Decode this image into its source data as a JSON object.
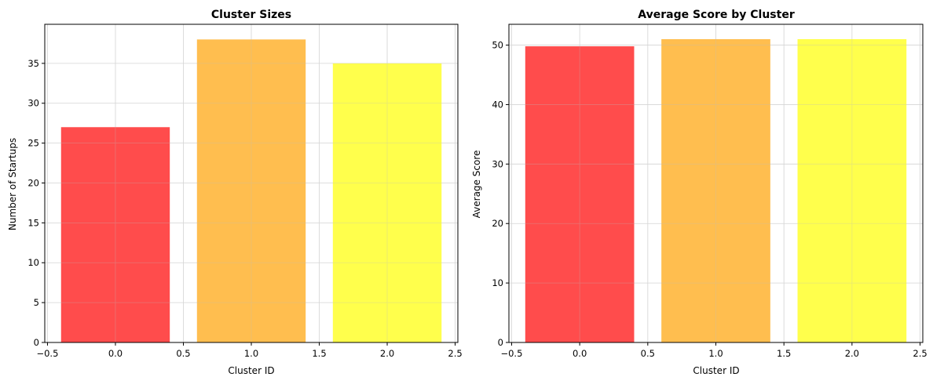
{
  "chart_data": [
    {
      "type": "bar",
      "title": "Cluster Sizes",
      "xlabel": "Cluster ID",
      "ylabel": "Number of Startups",
      "x": [
        0,
        1,
        2
      ],
      "values": [
        27,
        38,
        35
      ],
      "bar_width": 0.8,
      "colors": [
        "#ff4c4c",
        "#ffbe4f",
        "#ffff4c"
      ],
      "xlim": [
        -0.52,
        2.52
      ],
      "ylim": [
        0,
        39.9
      ],
      "xticks": [
        -0.5,
        0.0,
        0.5,
        1.0,
        1.5,
        2.0,
        2.5
      ],
      "xtick_labels": [
        "−0.5",
        "0.0",
        "0.5",
        "1.0",
        "1.5",
        "2.0",
        "2.5"
      ],
      "yticks": [
        0,
        5,
        10,
        15,
        20,
        25,
        30,
        35
      ],
      "ytick_labels": [
        "0",
        "5",
        "10",
        "15",
        "20",
        "25",
        "30",
        "35"
      ],
      "grid": true,
      "legend": "none"
    },
    {
      "type": "bar",
      "title": "Average Score by Cluster",
      "xlabel": "Cluster ID",
      "ylabel": "Average Score",
      "x": [
        0,
        1,
        2
      ],
      "values": [
        49.8,
        51.0,
        51.0
      ],
      "bar_width": 0.8,
      "colors": [
        "#ff4c4c",
        "#ffbe4f",
        "#ffff4c"
      ],
      "xlim": [
        -0.52,
        2.52
      ],
      "ylim": [
        0,
        53.5
      ],
      "xticks": [
        -0.5,
        0.0,
        0.5,
        1.0,
        1.5,
        2.0,
        2.5
      ],
      "xtick_labels": [
        "−0.5",
        "0.0",
        "0.5",
        "1.0",
        "1.5",
        "2.0",
        "2.5"
      ],
      "yticks": [
        0,
        10,
        20,
        30,
        40,
        50
      ],
      "ytick_labels": [
        "0",
        "10",
        "20",
        "30",
        "40",
        "50"
      ],
      "grid": true,
      "legend": "none"
    }
  ]
}
